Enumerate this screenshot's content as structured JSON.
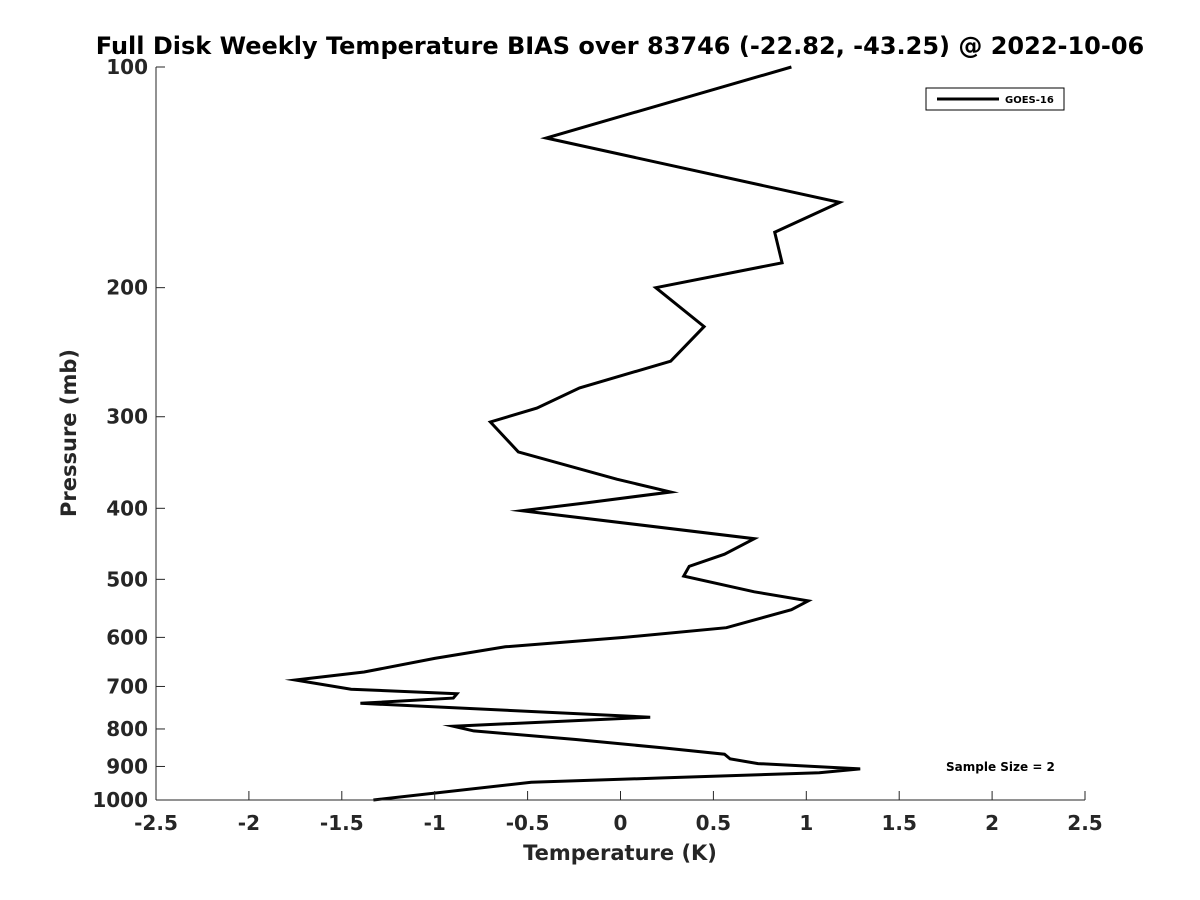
{
  "chart_data": {
    "type": "line",
    "title": "Full Disk Weekly Temperature BIAS over 83746 (-22.82, -43.25) @ 2022-10-06",
    "xlabel": "Temperature (K)",
    "ylabel": "Pressure (mb)",
    "xlim": [
      -2.5,
      2.5
    ],
    "ylim": [
      1000,
      100
    ],
    "y_scale": "log",
    "y_reversed": true,
    "grid": false,
    "legend_position": "top-right",
    "xticks": [
      -2.5,
      -2,
      -1.5,
      -1,
      -0.5,
      0,
      0.5,
      1,
      1.5,
      2,
      2.5
    ],
    "xtick_labels": [
      "-2.5",
      "-2",
      "-1.5",
      "-1",
      "-0.5",
      "0",
      "0.5",
      "1",
      "1.5",
      "2",
      "2.5"
    ],
    "yticks": [
      100,
      200,
      300,
      400,
      500,
      600,
      700,
      800,
      900,
      1000
    ],
    "ytick_labels": [
      "100",
      "200",
      "300",
      "400",
      "500",
      "600",
      "700",
      "800",
      "900",
      "1000"
    ],
    "series": [
      {
        "name": "GOES-16",
        "color": "#000000",
        "points": [
          [
            0.92,
            100
          ],
          [
            -0.4,
            125
          ],
          [
            1.18,
            153
          ],
          [
            0.83,
            168
          ],
          [
            0.87,
            185
          ],
          [
            0.19,
            200
          ],
          [
            0.45,
            226
          ],
          [
            0.27,
            252
          ],
          [
            -0.22,
            274
          ],
          [
            -0.45,
            292
          ],
          [
            -0.7,
            305
          ],
          [
            -0.55,
            335
          ],
          [
            -0.02,
            365
          ],
          [
            0.27,
            380
          ],
          [
            -0.18,
            393
          ],
          [
            -0.53,
            403
          ],
          [
            0.72,
            440
          ],
          [
            0.56,
            462
          ],
          [
            0.37,
            480
          ],
          [
            0.34,
            495
          ],
          [
            0.72,
            520
          ],
          [
            1.01,
            535
          ],
          [
            0.92,
            550
          ],
          [
            0.57,
            582
          ],
          [
            0.02,
            600
          ],
          [
            -0.62,
            618
          ],
          [
            -1.0,
            641
          ],
          [
            -1.38,
            669
          ],
          [
            -1.75,
            686
          ],
          [
            -1.45,
            706
          ],
          [
            -0.88,
            716
          ],
          [
            -0.9,
            726
          ],
          [
            -1.4,
            738
          ],
          [
            0.16,
            771
          ],
          [
            -0.9,
            793
          ],
          [
            -0.79,
            805
          ],
          [
            -0.24,
            827
          ],
          [
            0.23,
            849
          ],
          [
            0.56,
            866
          ],
          [
            0.59,
            879
          ],
          [
            0.74,
            892
          ],
          [
            1.29,
            907
          ],
          [
            1.07,
            918
          ],
          [
            0.23,
            933
          ],
          [
            -0.48,
            946
          ],
          [
            -1.33,
            1000
          ]
        ]
      }
    ],
    "annotations": [
      {
        "text": "Sample Size = 2",
        "position": "bottom-right"
      }
    ]
  }
}
